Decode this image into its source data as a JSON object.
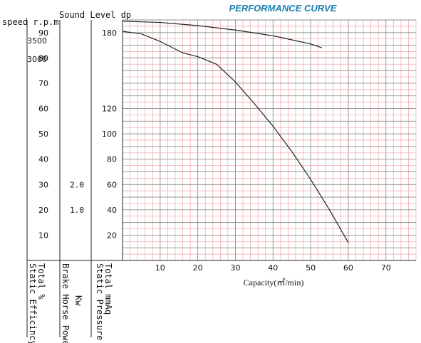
{
  "chart_data": {
    "type": "line",
    "title": "PERFORMANCE CURVE",
    "title_color": "#1a7fb0",
    "grid": true,
    "grid_colors": {
      "minor": "#f1a6a6",
      "major": "#8d8d8d"
    },
    "line_color": "#222222",
    "x_axis": {
      "label": "Capacity(㎥/min)",
      "range": [
        0,
        78
      ],
      "ticks": [
        "10",
        "20",
        "30",
        "40",
        "50",
        "60",
        "70"
      ]
    },
    "axes": {
      "speed": {
        "label": "speed r.p.m",
        "ticks": [
          "3500",
          "3000"
        ]
      },
      "sound": {
        "label": "Sound Level dp"
      },
      "efficiency": {
        "label": "Total  %",
        "sublabel": "Static Efficincy",
        "ticks": [
          "90",
          "80",
          "70",
          "60",
          "50",
          "40",
          "30",
          "20",
          "10"
        ]
      },
      "power": {
        "label": "Kw",
        "sublabel": "Brake Horse Power",
        "ticks": [
          "2.0",
          "1.0"
        ]
      },
      "pressure": {
        "label": "Total mmAq",
        "sublabel": "Static Pressure",
        "range": [
          0,
          190
        ],
        "ticks": [
          "180",
          "120",
          "100",
          "80",
          "60",
          "40",
          "20"
        ]
      }
    },
    "series": [
      {
        "x": [
          0,
          10,
          20,
          30,
          40,
          50,
          53
        ],
        "y": [
          189,
          188,
          185.5,
          182,
          177.5,
          171,
          168
        ]
      },
      {
        "x": [
          0,
          5,
          10,
          16,
          20,
          25,
          30,
          35,
          40,
          45,
          50,
          55,
          60
        ],
        "y": [
          181,
          179,
          173,
          164,
          161,
          155,
          141,
          124,
          106,
          86,
          64,
          40,
          14
        ]
      }
    ]
  }
}
